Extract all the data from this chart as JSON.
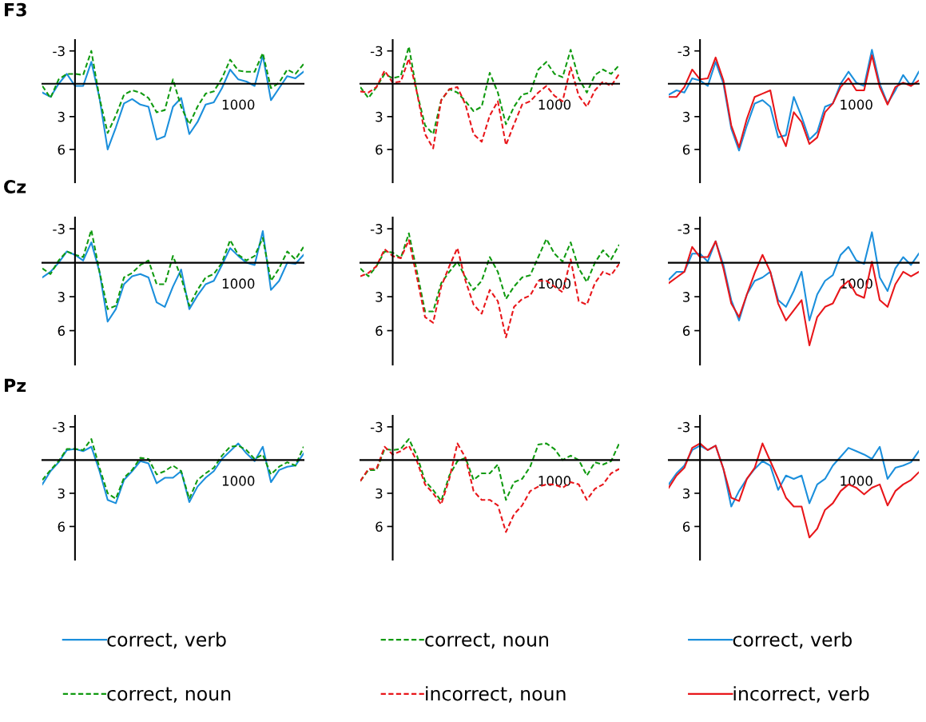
{
  "chart_data": [
    {
      "type": "line",
      "title": "F3",
      "categories": [
        null,
        null,
        null,
        null,
        null,
        null,
        null,
        null,
        null,
        null,
        null,
        null,
        null,
        null,
        null,
        null,
        null,
        null,
        null,
        null,
        null,
        null,
        null,
        null,
        "1000",
        null,
        null,
        null,
        null,
        null,
        null,
        null,
        null
      ],
      "ylim": [
        9,
        -4
      ],
      "yticks": [
        -3,
        3,
        6
      ],
      "series": [
        {
          "color": "#1b8fdc",
          "line_style": "solid",
          "values": [
            0.8,
            1.2,
            0.0,
            -0.9,
            0.2,
            0.2,
            -2.0,
            1.3,
            6.0,
            4.0,
            1.8,
            1.4,
            1.9,
            2.1,
            5.1,
            4.8,
            2.1,
            1.3,
            4.6,
            3.5,
            1.9,
            1.7,
            0.4,
            -1.3,
            -0.4,
            -0.2,
            0.2,
            -2.6,
            1.5,
            0.4,
            -0.7,
            -0.5,
            -1.1
          ]
        },
        {
          "color": "#109a10",
          "line_style": "dashed",
          "values": [
            0.2,
            1.3,
            -0.4,
            -0.9,
            -0.9,
            -0.8,
            -3.0,
            1.3,
            4.5,
            2.9,
            1.0,
            0.6,
            0.8,
            1.3,
            2.6,
            2.4,
            -0.4,
            2.1,
            3.7,
            2.1,
            0.9,
            0.7,
            -0.5,
            -2.2,
            -1.2,
            -1.1,
            -1.1,
            -2.8,
            0.4,
            -0.1,
            -1.3,
            -0.9,
            -1.8
          ]
        }
      ]
    },
    {
      "type": "line",
      "categories": [
        null,
        null,
        null,
        null,
        null,
        null,
        null,
        null,
        null,
        null,
        null,
        null,
        null,
        null,
        null,
        null,
        null,
        null,
        null,
        null,
        null,
        null,
        null,
        null,
        "1000",
        null,
        null,
        null,
        null,
        null,
        null,
        null,
        null
      ],
      "ylim": [
        9,
        -4
      ],
      "yticks": [
        -3,
        3,
        6
      ],
      "series": [
        {
          "color": "#109a10",
          "line_style": "dashed",
          "values": [
            0.3,
            1.3,
            0.3,
            -0.9,
            -0.5,
            -0.7,
            -3.4,
            0.8,
            3.8,
            4.6,
            1.5,
            0.5,
            0.8,
            1.6,
            2.5,
            2.1,
            -1.0,
            0.8,
            3.7,
            2.1,
            1.0,
            0.8,
            -1.3,
            -2.0,
            -0.9,
            -0.6,
            -3.1,
            -0.5,
            0.8,
            -0.8,
            -1.3,
            -0.9,
            -1.7
          ]
        },
        {
          "color": "#e8161a",
          "line_style": "dashed",
          "values": [
            0.7,
            0.8,
            0.3,
            -1.2,
            -0.1,
            -0.2,
            -2.3,
            0.8,
            4.6,
            5.9,
            1.5,
            0.5,
            0.3,
            1.9,
            4.6,
            5.3,
            2.9,
            1.6,
            5.6,
            3.7,
            1.9,
            1.6,
            0.8,
            0.2,
            1.1,
            1.6,
            -1.5,
            1.1,
            2.1,
            0.6,
            -0.2,
            0.2,
            -0.9
          ]
        }
      ]
    },
    {
      "type": "line",
      "categories": [
        null,
        null,
        null,
        null,
        null,
        null,
        null,
        null,
        null,
        null,
        null,
        null,
        null,
        null,
        null,
        null,
        null,
        null,
        null,
        null,
        null,
        null,
        null,
        null,
        "1000",
        null,
        null,
        null,
        null,
        null,
        null,
        null,
        null
      ],
      "ylim": [
        9,
        -4
      ],
      "yticks": [
        -3,
        3,
        6
      ],
      "series": [
        {
          "color": "#1b8fdc",
          "line_style": "solid",
          "values": [
            1.0,
            0.6,
            0.8,
            -0.5,
            -0.3,
            0.2,
            -2.0,
            0.0,
            4.1,
            6.1,
            3.8,
            1.8,
            1.5,
            2.1,
            4.9,
            4.7,
            1.2,
            3.0,
            5.1,
            4.4,
            2.1,
            1.8,
            0.0,
            -1.1,
            -0.1,
            0.2,
            -3.1,
            0.0,
            1.8,
            0.6,
            -0.8,
            0.2,
            -1.1
          ]
        },
        {
          "color": "#e8161a",
          "line_style": "solid",
          "values": [
            1.2,
            1.2,
            0.3,
            -1.3,
            -0.4,
            -0.5,
            -2.4,
            -0.3,
            3.8,
            5.8,
            3.2,
            1.2,
            0.9,
            0.6,
            4.1,
            5.7,
            2.6,
            3.5,
            5.5,
            4.9,
            2.6,
            1.8,
            0.3,
            -0.5,
            0.6,
            0.6,
            -2.6,
            0.3,
            1.9,
            0.3,
            -0.1,
            0.2,
            -0.3
          ]
        }
      ]
    },
    {
      "type": "line",
      "title": "Cz",
      "categories": [
        null,
        null,
        null,
        null,
        null,
        null,
        null,
        null,
        null,
        null,
        null,
        null,
        null,
        null,
        null,
        null,
        null,
        null,
        null,
        null,
        null,
        null,
        null,
        null,
        "1000",
        null,
        null,
        null,
        null,
        null,
        null,
        null,
        null
      ],
      "ylim": [
        9,
        -4
      ],
      "yticks": [
        -3,
        3,
        6
      ],
      "series": [
        {
          "color": "#1b8fdc",
          "line_style": "solid",
          "values": [
            1.3,
            0.8,
            0.0,
            -1.0,
            -0.7,
            -0.2,
            -1.8,
            0.8,
            5.2,
            4.1,
            1.9,
            1.2,
            1.0,
            1.3,
            3.5,
            3.9,
            2.1,
            0.6,
            4.1,
            2.9,
            1.9,
            1.6,
            0.2,
            -1.3,
            -0.6,
            0.0,
            0.2,
            -2.8,
            2.4,
            1.6,
            0.0,
            0.1,
            -0.7
          ]
        },
        {
          "color": "#109a10",
          "line_style": "dashed",
          "values": [
            0.5,
            1.0,
            -0.2,
            -1.0,
            -0.7,
            -0.5,
            -2.9,
            0.8,
            4.1,
            3.8,
            1.3,
            0.9,
            0.2,
            -0.2,
            1.9,
            1.9,
            -0.6,
            1.3,
            3.8,
            2.4,
            1.3,
            1.0,
            0.0,
            -2.0,
            -0.7,
            -0.2,
            -0.6,
            -2.2,
            1.6,
            0.5,
            -1.0,
            -0.3,
            -1.4
          ]
        }
      ]
    },
    {
      "type": "line",
      "categories": [
        null,
        null,
        null,
        null,
        null,
        null,
        null,
        null,
        null,
        null,
        null,
        null,
        null,
        null,
        null,
        null,
        null,
        null,
        null,
        null,
        null,
        null,
        null,
        null,
        "1000",
        null,
        null,
        null,
        null,
        null,
        null,
        null,
        null
      ],
      "ylim": [
        9,
        -4
      ],
      "yticks": [
        -3,
        3,
        6
      ],
      "series": [
        {
          "color": "#109a10",
          "line_style": "dashed",
          "values": [
            0.5,
            1.2,
            0.3,
            -1.0,
            -0.9,
            -0.4,
            -2.6,
            0.8,
            4.3,
            4.3,
            1.8,
            0.8,
            -0.1,
            1.3,
            2.4,
            1.6,
            -0.5,
            0.8,
            3.2,
            2.1,
            1.3,
            1.1,
            -0.5,
            -2.1,
            -0.8,
            -0.1,
            -1.8,
            0.5,
            1.7,
            0.0,
            -1.1,
            -0.3,
            -1.6
          ]
        },
        {
          "color": "#e8161a",
          "line_style": "dashed",
          "values": [
            1.2,
            0.9,
            0.3,
            -1.2,
            -0.6,
            -0.4,
            -2.0,
            1.3,
            4.8,
            5.3,
            2.1,
            0.3,
            -1.3,
            1.6,
            3.7,
            4.5,
            2.4,
            3.4,
            6.6,
            3.9,
            3.2,
            2.9,
            1.6,
            1.6,
            2.1,
            2.6,
            -0.3,
            3.4,
            3.7,
            1.8,
            0.8,
            1.1,
            0.1
          ]
        }
      ]
    },
    {
      "type": "line",
      "categories": [
        null,
        null,
        null,
        null,
        null,
        null,
        null,
        null,
        null,
        null,
        null,
        null,
        null,
        null,
        null,
        null,
        null,
        null,
        null,
        null,
        null,
        null,
        null,
        null,
        "1000",
        null,
        null,
        null,
        null,
        null,
        null,
        null,
        null
      ],
      "ylim": [
        9,
        -4
      ],
      "yticks": [
        -3,
        3,
        6
      ],
      "series": [
        {
          "color": "#1b8fdc",
          "line_style": "solid",
          "values": [
            1.5,
            0.8,
            0.8,
            -0.8,
            -0.8,
            -0.1,
            -1.9,
            0.2,
            3.3,
            5.1,
            2.8,
            1.6,
            1.3,
            0.8,
            3.3,
            3.9,
            2.5,
            0.8,
            5.1,
            2.8,
            1.6,
            1.1,
            -0.7,
            -1.4,
            -0.2,
            0.1,
            -2.7,
            1.3,
            2.5,
            0.5,
            -0.5,
            0.2,
            -0.8
          ]
        },
        {
          "color": "#e8161a",
          "line_style": "solid",
          "values": [
            1.8,
            1.3,
            0.8,
            -1.4,
            -0.5,
            -0.5,
            -1.9,
            0.5,
            3.6,
            4.8,
            2.8,
            0.9,
            -0.7,
            0.8,
            3.6,
            5.1,
            4.2,
            3.3,
            7.3,
            4.8,
            3.9,
            3.6,
            2.2,
            1.6,
            2.8,
            3.1,
            -0.1,
            3.3,
            3.9,
            1.9,
            0.8,
            1.2,
            0.8
          ]
        }
      ]
    },
    {
      "type": "line",
      "title": "Pz",
      "legend": "bottom",
      "categories": [
        null,
        null,
        null,
        null,
        null,
        null,
        null,
        null,
        null,
        null,
        null,
        null,
        null,
        null,
        null,
        null,
        null,
        null,
        null,
        null,
        null,
        null,
        null,
        null,
        "1000",
        null,
        null,
        null,
        null,
        null,
        null,
        null,
        null
      ],
      "ylim": [
        9,
        -4
      ],
      "yticks": [
        -3,
        3,
        6
      ],
      "series": [
        {
          "name": "correct, verb",
          "color": "#1b8fdc",
          "line_style": "solid",
          "values": [
            2.2,
            1.0,
            0.2,
            -0.9,
            -1.0,
            -0.8,
            -1.2,
            1.0,
            3.6,
            3.9,
            1.8,
            1.0,
            0.1,
            0.3,
            2.1,
            1.6,
            1.6,
            1.0,
            3.8,
            2.4,
            1.6,
            1.0,
            -0.1,
            -0.8,
            -1.5,
            -0.6,
            0.1,
            -1.2,
            2.0,
            0.9,
            0.6,
            0.5,
            -0.6
          ]
        },
        {
          "name": "correct, noun",
          "color": "#109a10",
          "line_style": "dashed",
          "values": [
            1.8,
            0.9,
            0.1,
            -1.0,
            -1.0,
            -0.9,
            -1.9,
            0.7,
            3.0,
            3.5,
            1.6,
            0.9,
            -0.2,
            -0.1,
            1.3,
            1.0,
            0.5,
            1.0,
            3.5,
            1.8,
            1.2,
            0.7,
            -0.4,
            -1.2,
            -1.3,
            -0.9,
            -0.1,
            -0.5,
            1.3,
            0.6,
            0.2,
            0.5,
            -1.2
          ]
        }
      ]
    },
    {
      "type": "line",
      "legend": "bottom",
      "categories": [
        null,
        null,
        null,
        null,
        null,
        null,
        null,
        null,
        null,
        null,
        null,
        null,
        null,
        null,
        null,
        null,
        null,
        null,
        null,
        null,
        null,
        null,
        null,
        null,
        "1000",
        null,
        null,
        null,
        null,
        null,
        null,
        null,
        null
      ],
      "ylim": [
        9,
        -4
      ],
      "yticks": [
        -3,
        3,
        6
      ],
      "series": [
        {
          "name": "correct, noun",
          "color": "#109a10",
          "line_style": "dashed",
          "values": [
            1.9,
            0.9,
            0.9,
            -1.0,
            -0.9,
            -1.0,
            -1.9,
            -0.4,
            1.9,
            2.7,
            3.7,
            1.4,
            0.1,
            -0.2,
            1.8,
            1.2,
            1.2,
            0.4,
            3.6,
            2.0,
            1.7,
            0.6,
            -1.4,
            -1.5,
            -1.0,
            0.0,
            -0.4,
            0.0,
            1.4,
            0.2,
            0.4,
            0.1,
            -1.5
          ]
        },
        {
          "name": "incorrect, noun",
          "color": "#e8161a",
          "line_style": "dashed",
          "values": [
            1.9,
            0.8,
            0.8,
            -1.2,
            -0.5,
            -0.8,
            -1.3,
            0.1,
            2.2,
            3.0,
            4.0,
            1.7,
            -1.5,
            -0.2,
            2.8,
            3.6,
            3.6,
            4.1,
            6.5,
            4.9,
            4.1,
            2.8,
            2.4,
            2.2,
            2.2,
            2.5,
            2.0,
            2.2,
            3.6,
            2.6,
            2.2,
            1.2,
            0.8
          ]
        }
      ]
    },
    {
      "type": "line",
      "legend": "bottom",
      "categories": [
        null,
        null,
        null,
        null,
        null,
        null,
        null,
        null,
        null,
        null,
        null,
        null,
        null,
        null,
        null,
        null,
        null,
        null,
        null,
        null,
        null,
        null,
        null,
        null,
        "1000",
        null,
        null,
        null,
        null,
        null,
        null,
        null,
        null
      ],
      "ylim": [
        9,
        -4
      ],
      "yticks": [
        -3,
        3,
        6
      ],
      "series": [
        {
          "name": "correct, verb",
          "color": "#1b8fdc",
          "line_style": "solid",
          "values": [
            2.2,
            1.2,
            0.5,
            -0.9,
            -1.3,
            -0.9,
            -1.3,
            0.8,
            4.2,
            2.8,
            1.7,
            0.8,
            0.1,
            0.5,
            2.7,
            1.4,
            1.7,
            1.4,
            3.9,
            2.2,
            1.7,
            0.5,
            -0.3,
            -1.1,
            -0.8,
            -0.5,
            -0.1,
            -1.2,
            1.7,
            0.7,
            0.5,
            0.2,
            -0.8
          ]
        },
        {
          "name": "incorrect, verb",
          "color": "#e8161a",
          "line_style": "solid",
          "values": [
            2.5,
            1.4,
            0.7,
            -1.1,
            -1.5,
            -0.9,
            -1.3,
            0.8,
            3.4,
            3.7,
            1.7,
            0.7,
            -1.5,
            0.1,
            1.7,
            3.4,
            4.2,
            4.2,
            7.0,
            6.2,
            4.5,
            3.9,
            2.8,
            2.2,
            2.5,
            3.1,
            2.5,
            2.2,
            4.1,
            2.8,
            2.2,
            1.8,
            1.1
          ]
        }
      ]
    }
  ]
}
